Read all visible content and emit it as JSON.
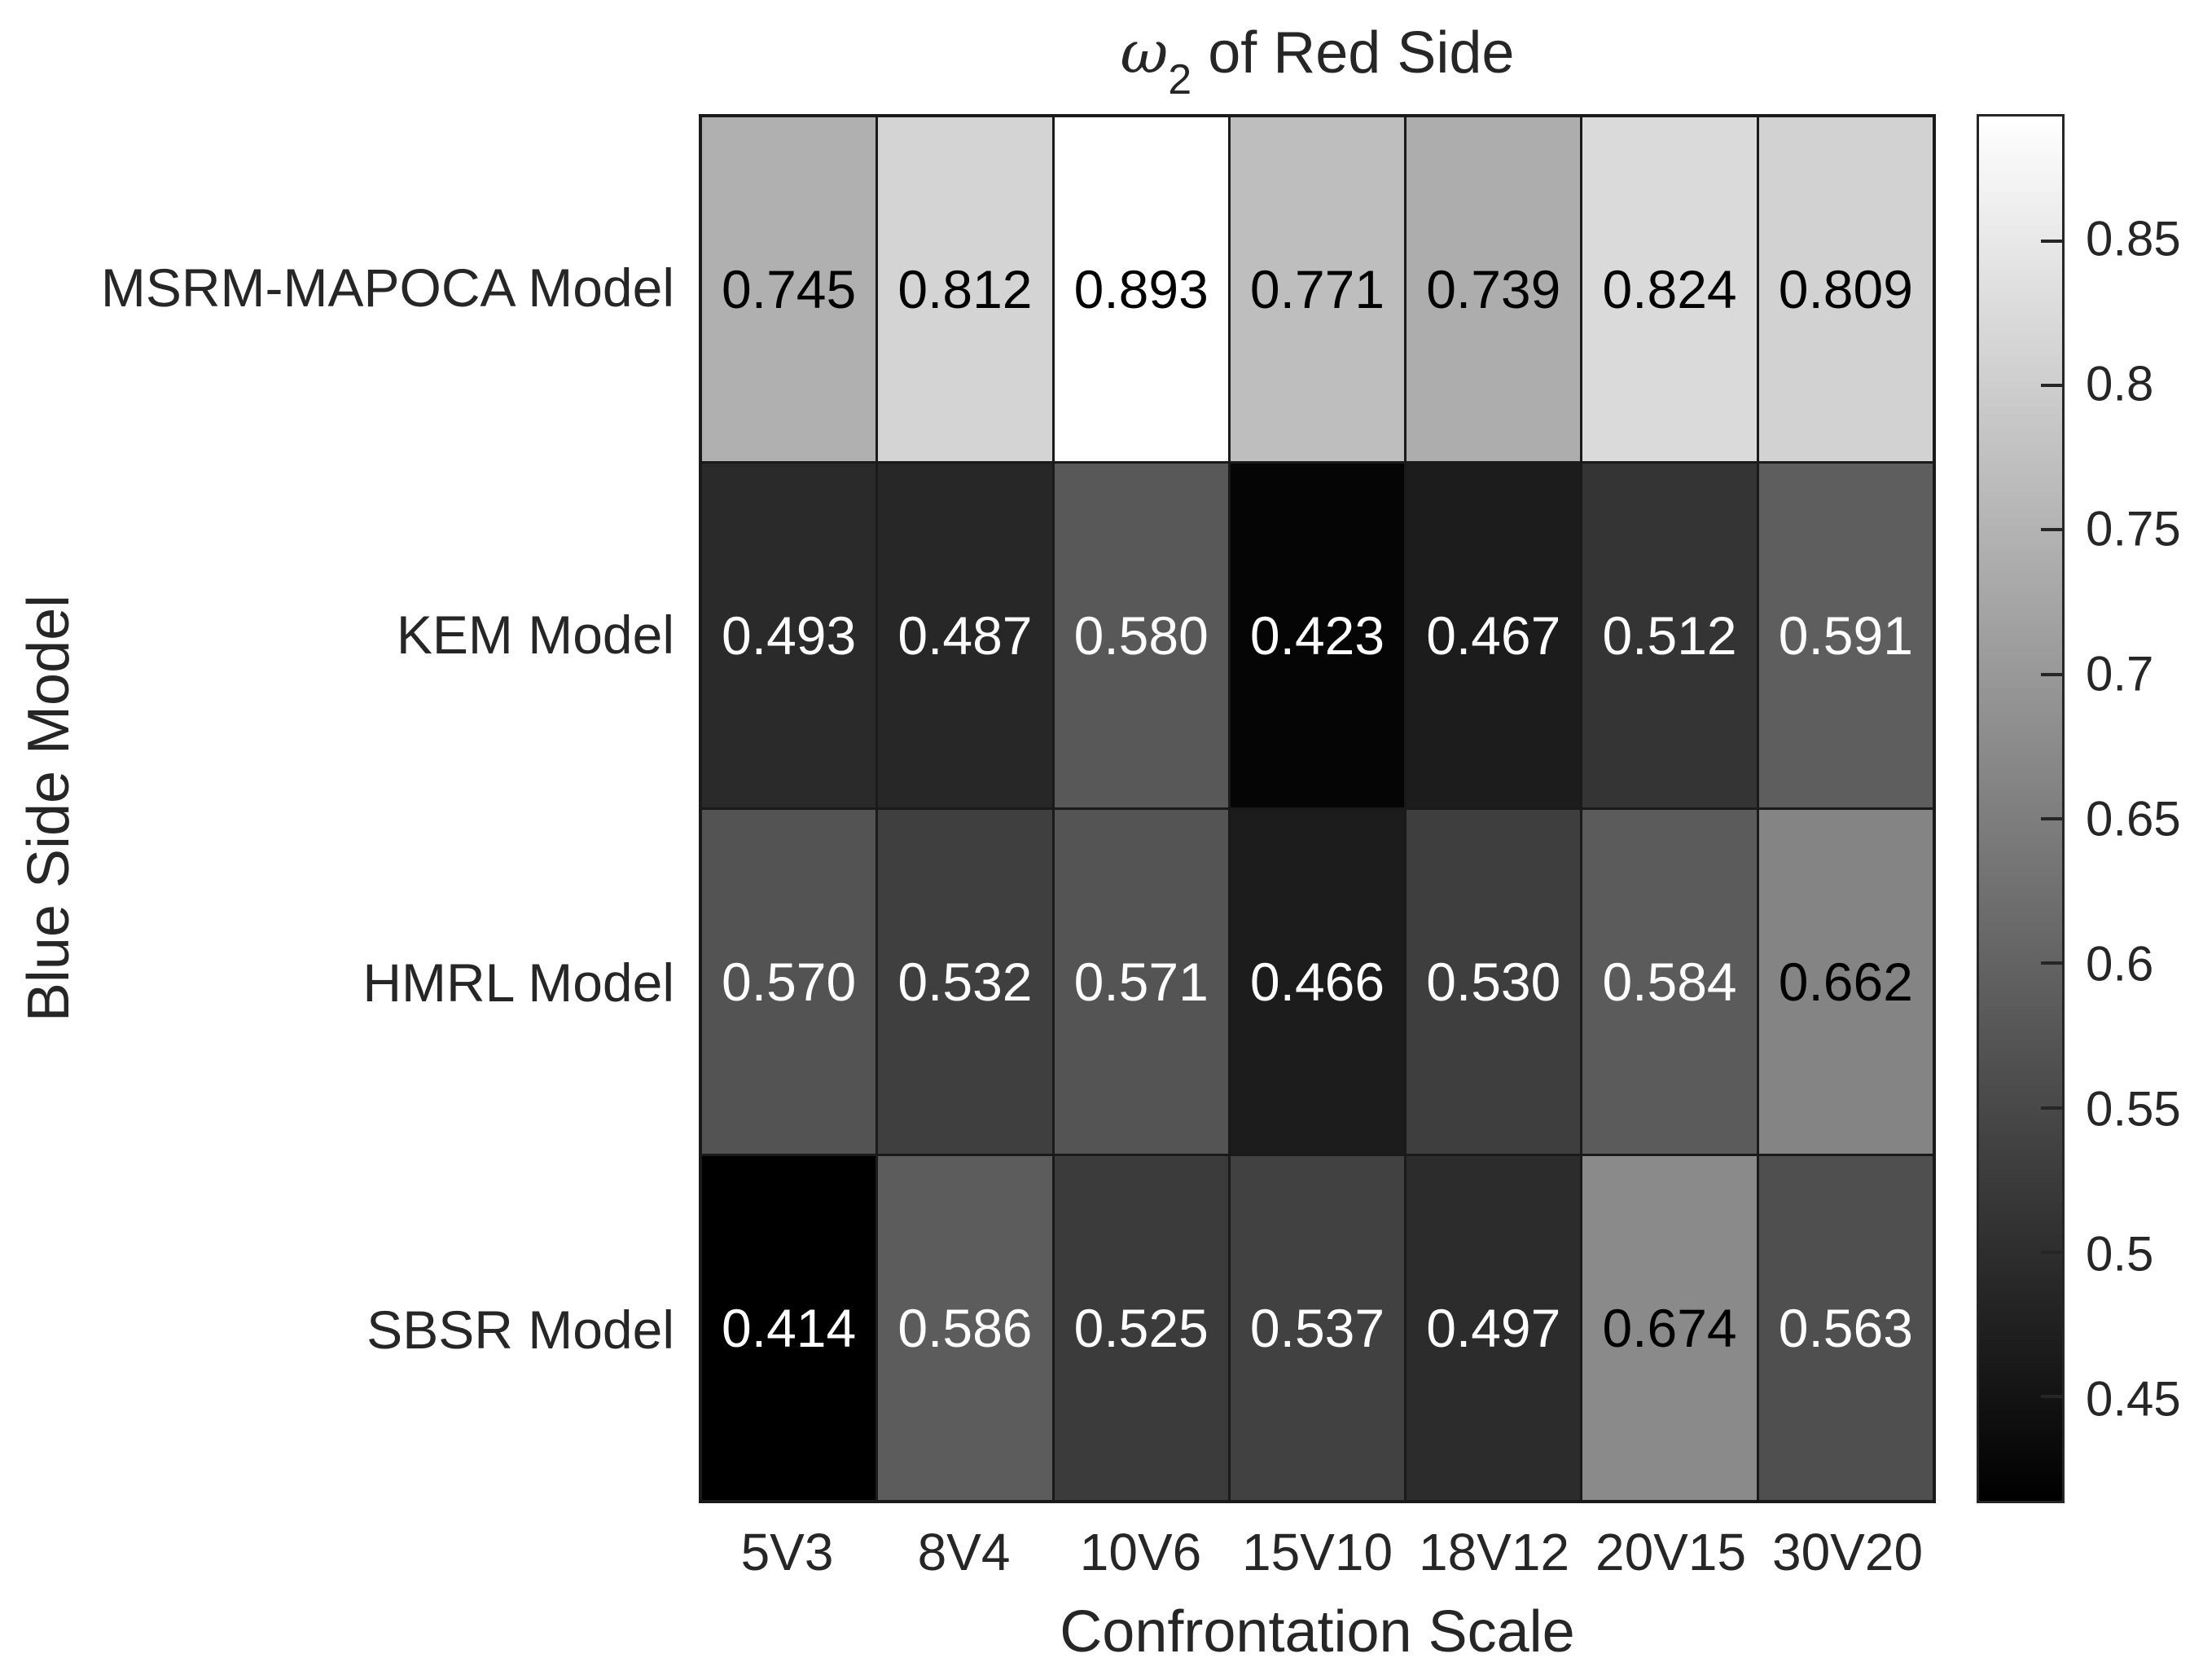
{
  "figure": {
    "title": {
      "symbol": "ω",
      "subscript": "2",
      "suffix": " of Red Side"
    },
    "xlabel": "Confrontation Scale",
    "ylabel": "Blue Side Model"
  },
  "colors": {
    "background": "#ffffff",
    "text": "#262626",
    "grid_line": "#1a1a1a",
    "cell_text_on_dark": "#ffffff",
    "cell_text_on_light": "#000000",
    "colormap_low": "#000000",
    "colormap_high": "#ffffff"
  },
  "chart_data": {
    "type": "heatmap",
    "title": "ω_2 of Red Side",
    "xlabel": "Confrontation Scale",
    "ylabel": "Blue Side Model",
    "categories": [
      "5V3",
      "8V4",
      "10V6",
      "15V10",
      "18V12",
      "20V15",
      "30V20"
    ],
    "rows": [
      "MSRM-MAPOCA Model",
      "KEM Model",
      "HMRL Model",
      "SBSR Model"
    ],
    "series": [
      {
        "name": "MSRM-MAPOCA Model",
        "values": [
          0.745,
          0.812,
          0.893,
          0.771,
          0.739,
          0.824,
          0.809
        ]
      },
      {
        "name": "KEM Model",
        "values": [
          0.493,
          0.487,
          0.58,
          0.423,
          0.467,
          0.512,
          0.591
        ]
      },
      {
        "name": "HMRL Model",
        "values": [
          0.57,
          0.532,
          0.571,
          0.466,
          0.53,
          0.584,
          0.662
        ]
      },
      {
        "name": "SBSR Model",
        "values": [
          0.414,
          0.586,
          0.525,
          0.537,
          0.497,
          0.674,
          0.563
        ]
      }
    ],
    "value_decimals": 3,
    "colormap": "gray",
    "color_range": [
      0.414,
      0.893
    ],
    "colorbar_position": "right",
    "colorbar_ticks": [
      "0.85",
      "0.8",
      "0.75",
      "0.7",
      "0.65",
      "0.6",
      "0.55",
      "0.5",
      "0.45"
    ],
    "colorbar_tick_values": [
      0.85,
      0.8,
      0.75,
      0.7,
      0.65,
      0.6,
      0.55,
      0.5,
      0.45
    ],
    "grid": true
  }
}
